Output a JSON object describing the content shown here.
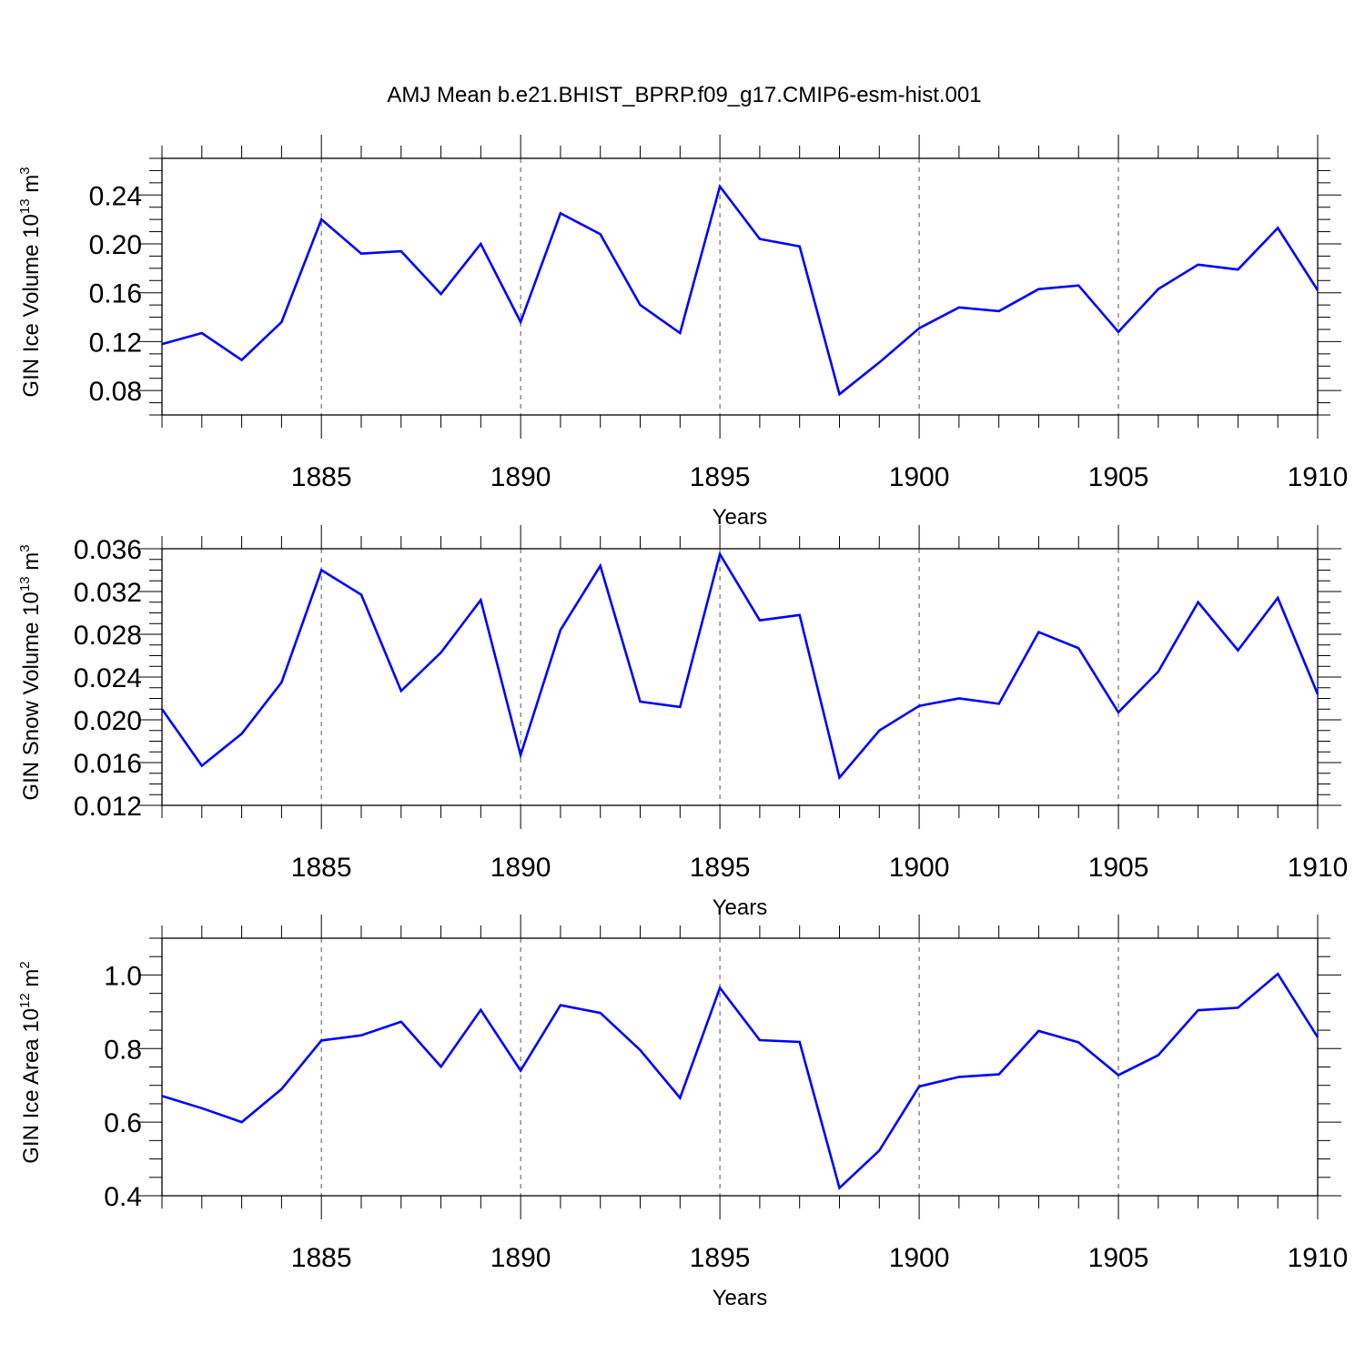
{
  "title": "AMJ Mean b.e21.BHIST_BPRP.f09_g17.CMIP6-esm-hist.001",
  "chart_data": [
    {
      "type": "line",
      "name": "ice-volume",
      "ylabel_main": "GIN Ice Volume 10",
      "ylabel_exp": "13",
      "ylabel_unit": "m",
      "ylabel_unit_exp": "3",
      "xlabel": "Years",
      "xlim": [
        1881,
        1910
      ],
      "ylim": [
        0.06,
        0.27
      ],
      "xticks": [
        1885,
        1890,
        1895,
        1900,
        1905,
        1910
      ],
      "xtick_labels": [
        "1885",
        "1890",
        "1895",
        "1900",
        "1905",
        "1910"
      ],
      "yticks": [
        0.08,
        0.12,
        0.16,
        0.2,
        0.24
      ],
      "ytick_labels": [
        "0.08",
        "0.12",
        "0.16",
        "0.20",
        "0.24"
      ],
      "color": "#0000ff",
      "x": [
        1881,
        1882,
        1883,
        1884,
        1885,
        1886,
        1887,
        1888,
        1889,
        1890,
        1891,
        1892,
        1893,
        1894,
        1895,
        1896,
        1897,
        1898,
        1899,
        1900,
        1901,
        1902,
        1903,
        1904,
        1905,
        1906,
        1907,
        1908,
        1909,
        1910
      ],
      "values": [
        0.118,
        0.127,
        0.105,
        0.136,
        0.22,
        0.192,
        0.194,
        0.159,
        0.2,
        0.136,
        0.225,
        0.208,
        0.15,
        0.127,
        0.247,
        0.204,
        0.198,
        0.077,
        0.103,
        0.131,
        0.148,
        0.145,
        0.163,
        0.166,
        0.128,
        0.163,
        0.183,
        0.179,
        0.213,
        0.162
      ]
    },
    {
      "type": "line",
      "name": "snow-volume",
      "ylabel_main": "GIN Snow Volume 10",
      "ylabel_exp": "13",
      "ylabel_unit": "m",
      "ylabel_unit_exp": "3",
      "xlabel": "Years",
      "xlim": [
        1881,
        1910
      ],
      "ylim": [
        0.012,
        0.036
      ],
      "xticks": [
        1885,
        1890,
        1895,
        1900,
        1905,
        1910
      ],
      "xtick_labels": [
        "1885",
        "1890",
        "1895",
        "1900",
        "1905",
        "1910"
      ],
      "yticks": [
        0.012,
        0.016,
        0.02,
        0.024,
        0.028,
        0.032,
        0.036
      ],
      "ytick_labels": [
        "0.012",
        "0.016",
        "0.020",
        "0.024",
        "0.028",
        "0.032",
        "0.036"
      ],
      "color": "#0000ff",
      "x": [
        1881,
        1882,
        1883,
        1884,
        1885,
        1886,
        1887,
        1888,
        1889,
        1890,
        1891,
        1892,
        1893,
        1894,
        1895,
        1896,
        1897,
        1898,
        1899,
        1900,
        1901,
        1902,
        1903,
        1904,
        1905,
        1906,
        1907,
        1908,
        1909,
        1910
      ],
      "values": [
        0.021,
        0.0157,
        0.0187,
        0.0235,
        0.034,
        0.0317,
        0.0227,
        0.0263,
        0.0312,
        0.0167,
        0.0284,
        0.0344,
        0.0217,
        0.0212,
        0.0355,
        0.0293,
        0.0298,
        0.0146,
        0.019,
        0.0213,
        0.022,
        0.0215,
        0.0282,
        0.0267,
        0.0207,
        0.0245,
        0.031,
        0.0265,
        0.0314,
        0.0224
      ]
    },
    {
      "type": "line",
      "name": "ice-area",
      "ylabel_main": "GIN Ice Area 10",
      "ylabel_exp": "12",
      "ylabel_unit": "m",
      "ylabel_unit_exp": "2",
      "xlabel": "Years",
      "xlim": [
        1881,
        1910
      ],
      "ylim": [
        0.4,
        1.1
      ],
      "xticks": [
        1885,
        1890,
        1895,
        1900,
        1905,
        1910
      ],
      "xtick_labels": [
        "1885",
        "1890",
        "1895",
        "1900",
        "1905",
        "1910"
      ],
      "yticks": [
        0.4,
        0.6,
        0.8,
        1.0
      ],
      "ytick_labels": [
        "0.4",
        "0.6",
        "0.8",
        "1.0"
      ],
      "color": "#0000ff",
      "x": [
        1881,
        1882,
        1883,
        1884,
        1885,
        1886,
        1887,
        1888,
        1889,
        1890,
        1891,
        1892,
        1893,
        1894,
        1895,
        1896,
        1897,
        1898,
        1899,
        1900,
        1901,
        1902,
        1903,
        1904,
        1905,
        1906,
        1907,
        1908,
        1909,
        1910
      ],
      "values": [
        0.671,
        0.638,
        0.6,
        0.69,
        0.822,
        0.836,
        0.873,
        0.751,
        0.905,
        0.74,
        0.918,
        0.897,
        0.796,
        0.666,
        0.965,
        0.823,
        0.818,
        0.421,
        0.523,
        0.697,
        0.723,
        0.73,
        0.848,
        0.817,
        0.728,
        0.782,
        0.904,
        0.911,
        1.003,
        0.831
      ]
    }
  ]
}
